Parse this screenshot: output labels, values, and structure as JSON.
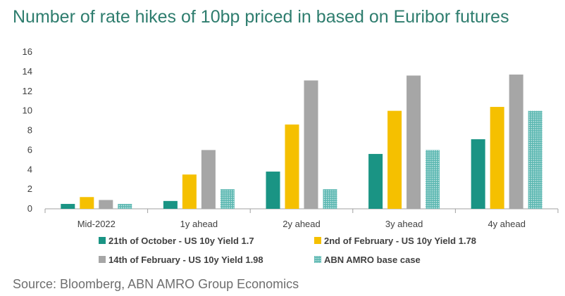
{
  "title": "Number of rate hikes of 10bp priced in based on Euribor futures",
  "source": "Source: Bloomberg, ABN AMRO Group Economics",
  "chart_data": {
    "type": "bar",
    "title": "Number of rate hikes of 10bp priced in based on Euribor futures",
    "xlabel": "",
    "ylabel": "",
    "ylim": [
      0,
      16
    ],
    "yticks": [
      0,
      2,
      4,
      6,
      8,
      10,
      12,
      14,
      16
    ],
    "grid": false,
    "legend_position": "bottom",
    "categories": [
      "Mid-2022",
      "1y ahead",
      "2y ahead",
      "3y ahead",
      "4y ahead"
    ],
    "series": [
      {
        "name": "21th of October - US 10y Yield 1.7",
        "color": "#1a9484",
        "pattern": "solid",
        "values": [
          0.5,
          0.8,
          3.8,
          5.6,
          7.1
        ]
      },
      {
        "name": "2nd of February - US 10y Yield 1.78",
        "color": "#f5c000",
        "pattern": "solid",
        "values": [
          1.2,
          3.5,
          8.6,
          10.0,
          10.4
        ]
      },
      {
        "name": "14th of February - US 10y Yield 1.98",
        "color": "#a6a6a6",
        "pattern": "solid",
        "values": [
          0.9,
          6.0,
          13.1,
          13.6,
          13.7
        ]
      },
      {
        "name": "ABN AMRO base case",
        "color": "#5fb9b3",
        "pattern": "dotted",
        "values": [
          0.5,
          2.0,
          2.0,
          6.0,
          10.0
        ]
      }
    ]
  }
}
